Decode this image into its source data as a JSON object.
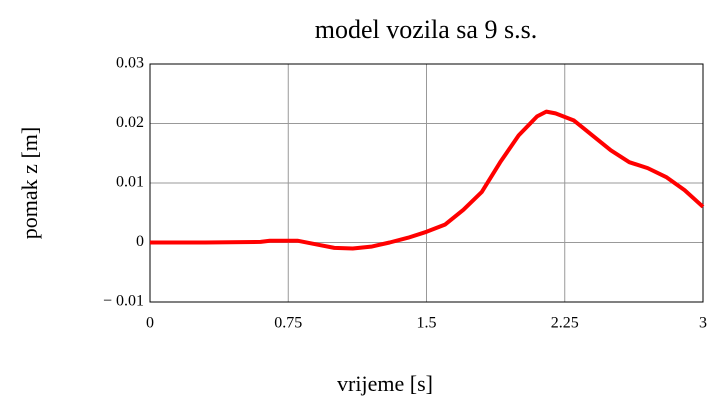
{
  "chart_data": {
    "type": "line",
    "title": "model vozila sa 9 s.s.",
    "x_label": "vrijeme [s]",
    "y_label": "pomak z [m]",
    "x": [
      0,
      0.3,
      0.6,
      0.65,
      0.8,
      0.9,
      1.0,
      1.1,
      1.2,
      1.3,
      1.4,
      1.5,
      1.6,
      1.7,
      1.8,
      1.9,
      2.0,
      2.1,
      2.15,
      2.2,
      2.3,
      2.4,
      2.5,
      2.6,
      2.7,
      2.8,
      2.9,
      3.0
    ],
    "series": [
      {
        "color": "#ff0000",
        "values": [
          0,
          0,
          0.0001,
          0.0003,
          0.0003,
          -0.0003,
          -0.0009,
          -0.001,
          -0.0007,
          0,
          0.0008,
          0.0018,
          0.003,
          0.0055,
          0.0085,
          0.0135,
          0.018,
          0.0212,
          0.022,
          0.0217,
          0.0205,
          0.018,
          0.0155,
          0.0135,
          0.0125,
          0.011,
          0.0088,
          0.006
        ]
      }
    ],
    "xlim": [
      0,
      3
    ],
    "xticks": [
      0,
      0.75,
      1.5,
      2.25,
      3
    ],
    "ylim": [
      -0.01,
      0.03
    ],
    "yticks": [
      {
        "value": -0.01,
        "label": "− 0.01"
      },
      0,
      0.01,
      0.02,
      0.03
    ],
    "grid": true
  }
}
